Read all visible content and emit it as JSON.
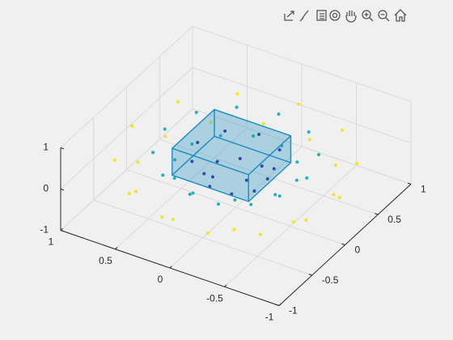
{
  "chart_data": {
    "type": "scatter3d",
    "xlim": [
      -1,
      1
    ],
    "ylim": [
      -1,
      1
    ],
    "zlim": [
      -1,
      1
    ],
    "xticks": [
      -1,
      -0.5,
      0,
      0.5,
      1
    ],
    "yticks": [
      -1,
      -0.5,
      0,
      0.5,
      1
    ],
    "zticks": [
      -1,
      0,
      1
    ],
    "grid": true,
    "series": [
      {
        "color": "#f2e619",
        "x": [
          0.95,
          0.77,
          0.82,
          0.57,
          0.48,
          0.21,
          0,
          -0.21,
          -0.48,
          -0.57,
          -0.82,
          -0.77,
          -0.95,
          -0.77,
          -0.82,
          -0.57,
          -0.48,
          -0.21,
          0,
          0.21,
          0.48,
          0.57,
          0.82,
          0.77
        ],
        "y": [
          0,
          0.21,
          0.48,
          0.57,
          0.82,
          0.77,
          0.95,
          0.77,
          0.82,
          0.57,
          0.48,
          0.21,
          0,
          -0.21,
          -0.48,
          -0.57,
          -0.82,
          -0.77,
          -0.95,
          -0.77,
          -0.82,
          -0.57,
          -0.48,
          -0.21
        ],
        "z": [
          0.1,
          -0.3,
          0.1,
          -0.3,
          0.1,
          -0.3,
          0.1,
          -0.3,
          0.1,
          -0.3,
          0.1,
          -0.3,
          0.1,
          -0.3,
          0.1,
          -0.3,
          0.1,
          -0.3,
          0.1,
          -0.3,
          0.1,
          -0.3,
          0.1,
          -0.3
        ]
      },
      {
        "color": "#1fb3b5",
        "x": [
          0.65,
          0.48,
          0.56,
          0.35,
          0.33,
          0.13,
          0,
          -0.13,
          -0.33,
          -0.35,
          -0.56,
          -0.48,
          -0.65,
          -0.48,
          -0.56,
          -0.35,
          -0.33,
          -0.13,
          0,
          0.13,
          0.33,
          0.35,
          0.56,
          0.48
        ],
        "y": [
          0,
          0.13,
          0.33,
          0.35,
          0.56,
          0.48,
          0.65,
          0.48,
          0.56,
          0.35,
          0.33,
          0.13,
          0,
          -0.13,
          -0.33,
          -0.35,
          -0.56,
          -0.48,
          -0.65,
          -0.48,
          -0.56,
          -0.35,
          -0.33,
          -0.13
        ],
        "z": [
          0.3,
          -0.1,
          0.3,
          -0.1,
          0.3,
          -0.1,
          0.3,
          -0.1,
          0.3,
          -0.1,
          0.3,
          -0.1,
          0.3,
          -0.1,
          0.3,
          -0.1,
          0.3,
          -0.1,
          0.3,
          -0.1,
          0.3,
          -0.1,
          0.3,
          -0.1
        ]
      },
      {
        "color": "#36299a",
        "x": [
          0.35,
          0.23,
          0.25,
          0.1,
          0,
          -0.1,
          -0.25,
          -0.23,
          -0.35,
          -0.23,
          -0.25,
          -0.1,
          0,
          0.1,
          0.25,
          0.23
        ],
        "y": [
          0,
          0.1,
          0.25,
          0.23,
          0.35,
          0.23,
          0.25,
          0.1,
          0,
          -0.1,
          -0.25,
          -0.23,
          -0.35,
          -0.23,
          -0.25,
          -0.1
        ],
        "z": [
          0.25,
          -0.25,
          0.25,
          -0.25,
          0.25,
          -0.25,
          0.25,
          -0.25,
          0.25,
          -0.25,
          0.25,
          -0.25,
          0.25,
          -0.25,
          0.25,
          -0.25
        ]
      }
    ],
    "box": {
      "x": [
        -0.25,
        0.45
      ],
      "y": [
        -0.22,
        0.42
      ],
      "z": [
        -0.31,
        0.34
      ],
      "color": "#1f8fc4"
    }
  }
}
